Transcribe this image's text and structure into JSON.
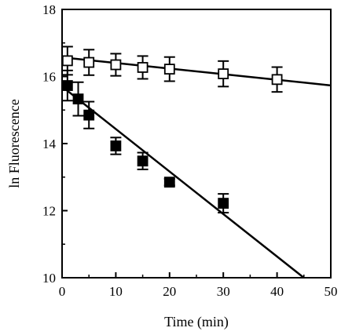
{
  "chart_data": {
    "type": "scatter",
    "title": "",
    "xlabel": "Time (min)",
    "ylabel": "ln Fluorescence",
    "xlim": [
      0,
      50
    ],
    "ylim": [
      10,
      18
    ],
    "x_ticks": [
      0,
      10,
      20,
      30,
      40,
      50
    ],
    "y_ticks": [
      10,
      12,
      14,
      16,
      18
    ],
    "x_tick_labels": [
      "0",
      "10",
      "20",
      "30",
      "40",
      "50"
    ],
    "y_tick_labels": [
      "10",
      "12",
      "14",
      "16",
      "18"
    ],
    "grid": false,
    "legend": "none",
    "series": [
      {
        "marker": "open-square",
        "x": [
          1,
          5,
          10,
          15,
          20,
          30,
          40
        ],
        "y": [
          16.47,
          16.42,
          16.35,
          16.27,
          16.22,
          16.08,
          15.91
        ],
        "err": [
          0.42,
          0.38,
          0.33,
          0.34,
          0.36,
          0.38,
          0.37
        ],
        "fit": {
          "slope": -0.0167,
          "intercept": 16.57
        }
      },
      {
        "marker": "filled-square",
        "x": [
          1,
          3,
          5,
          10,
          15,
          20,
          30
        ],
        "y": [
          15.73,
          15.33,
          14.85,
          13.93,
          13.48,
          12.85,
          12.22
        ],
        "err": [
          0.45,
          0.5,
          0.4,
          0.25,
          0.25,
          0.1,
          0.28
        ],
        "fit": {
          "slope": -0.1267,
          "intercept": 15.7
        }
      }
    ]
  }
}
